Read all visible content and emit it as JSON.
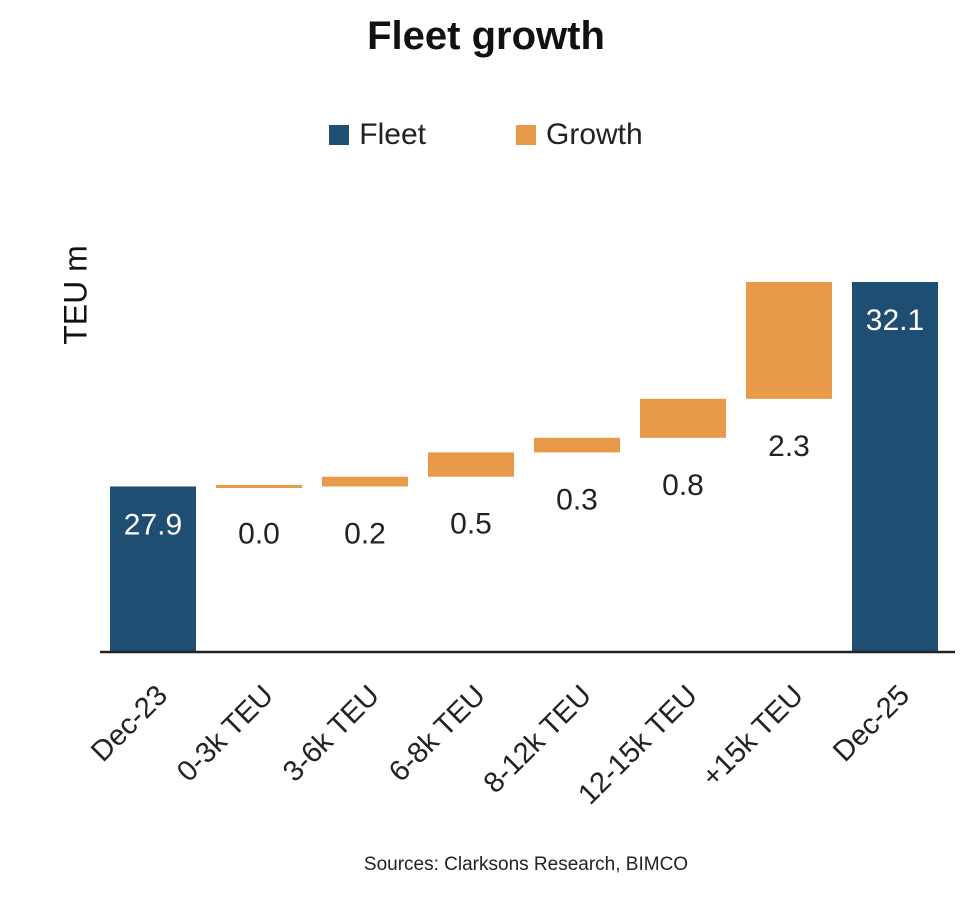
{
  "chart_data": {
    "type": "bar",
    "subtype": "waterfall",
    "title": "Fleet growth",
    "ylabel": "TEU m",
    "xlabel": "",
    "legend": [
      {
        "name": "Fleet",
        "color": "#1f4e73"
      },
      {
        "name": "Growth",
        "color": "#e8994a"
      }
    ],
    "legend_position": "top",
    "categories": [
      "Dec-23",
      "0-3k TEU",
      "3-6k TEU",
      "6-8k TEU",
      "8-12k TEU",
      "12-15k TEU",
      "+15k TEU",
      "Dec-25"
    ],
    "bars": [
      {
        "category": "Dec-23",
        "kind": "total",
        "start": 0,
        "end": 27.9,
        "label": "27.9"
      },
      {
        "category": "0-3k TEU",
        "kind": "delta",
        "start": 27.9,
        "end": 27.9,
        "label": "0.0"
      },
      {
        "category": "3-6k TEU",
        "kind": "delta",
        "start": 27.9,
        "end": 28.1,
        "label": "0.2"
      },
      {
        "category": "6-8k TEU",
        "kind": "delta",
        "start": 28.1,
        "end": 28.6,
        "label": "0.5"
      },
      {
        "category": "8-12k TEU",
        "kind": "delta",
        "start": 28.6,
        "end": 28.9,
        "label": "0.3"
      },
      {
        "category": "12-15k TEU",
        "kind": "delta",
        "start": 28.9,
        "end": 29.7,
        "label": "0.8"
      },
      {
        "category": "+15k TEU",
        "kind": "delta",
        "start": 29.7,
        "end": 32.1,
        "label": "2.3"
      },
      {
        "category": "Dec-25",
        "kind": "total",
        "start": 0,
        "end": 32.1,
        "label": "32.1"
      }
    ],
    "axis_display": {
      "baseline_value": 24.5,
      "top_value": 32.1
    },
    "gridlines": false,
    "colors": {
      "fleet": "#1f4e73",
      "growth": "#e8994a"
    }
  },
  "source": "Sources: Clarksons Research, BIMCO"
}
